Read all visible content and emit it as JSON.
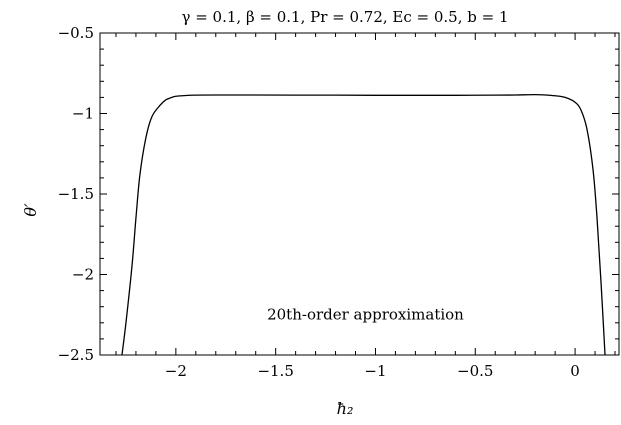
{
  "chart_data": {
    "type": "line",
    "title": "γ = 0.1, β = 0.1, Pr = 0.72, Ec = 0.5, b = 1",
    "xlabel": "ħ₂",
    "ylabel": "θ′",
    "xlim": [
      -2.38,
      0.22
    ],
    "ylim": [
      -2.5,
      -0.5
    ],
    "xticks": [
      -2,
      -1.5,
      -1,
      -0.5,
      0
    ],
    "xtick_labels": [
      "−2",
      "−1.5",
      "−1",
      "−0.5",
      "0"
    ],
    "yticks": [
      -0.5,
      -1,
      -1.5,
      -2,
      -2.5
    ],
    "ytick_labels": [
      "−0.5",
      "−1",
      "−1.5",
      "−2",
      "−2.5"
    ],
    "grid": false,
    "annotation": {
      "text": "20th-order approximation",
      "x": -1.05,
      "y": -2.28
    },
    "series": [
      {
        "x": [
          -2.27,
          -2.25,
          -2.22,
          -2.2,
          -2.18,
          -2.15,
          -2.12,
          -2.08,
          -2.05,
          -2.02,
          -2.0,
          -1.95,
          -1.9,
          -1.8,
          -1.6,
          -1.4,
          -1.2,
          -1.0,
          -0.8,
          -0.6,
          -0.4,
          -0.3,
          -0.2,
          -0.15,
          -0.1,
          -0.05,
          0.0,
          0.03,
          0.06,
          0.09,
          0.11,
          0.13,
          0.15
        ],
        "y": [
          -2.5,
          -2.3,
          -1.95,
          -1.65,
          -1.38,
          -1.15,
          -1.02,
          -0.95,
          -0.915,
          -0.9,
          -0.893,
          -0.888,
          -0.886,
          -0.885,
          -0.885,
          -0.886,
          -0.886,
          -0.887,
          -0.887,
          -0.887,
          -0.886,
          -0.885,
          -0.883,
          -0.885,
          -0.89,
          -0.9,
          -0.93,
          -0.98,
          -1.1,
          -1.35,
          -1.65,
          -2.05,
          -2.5
        ]
      }
    ]
  }
}
